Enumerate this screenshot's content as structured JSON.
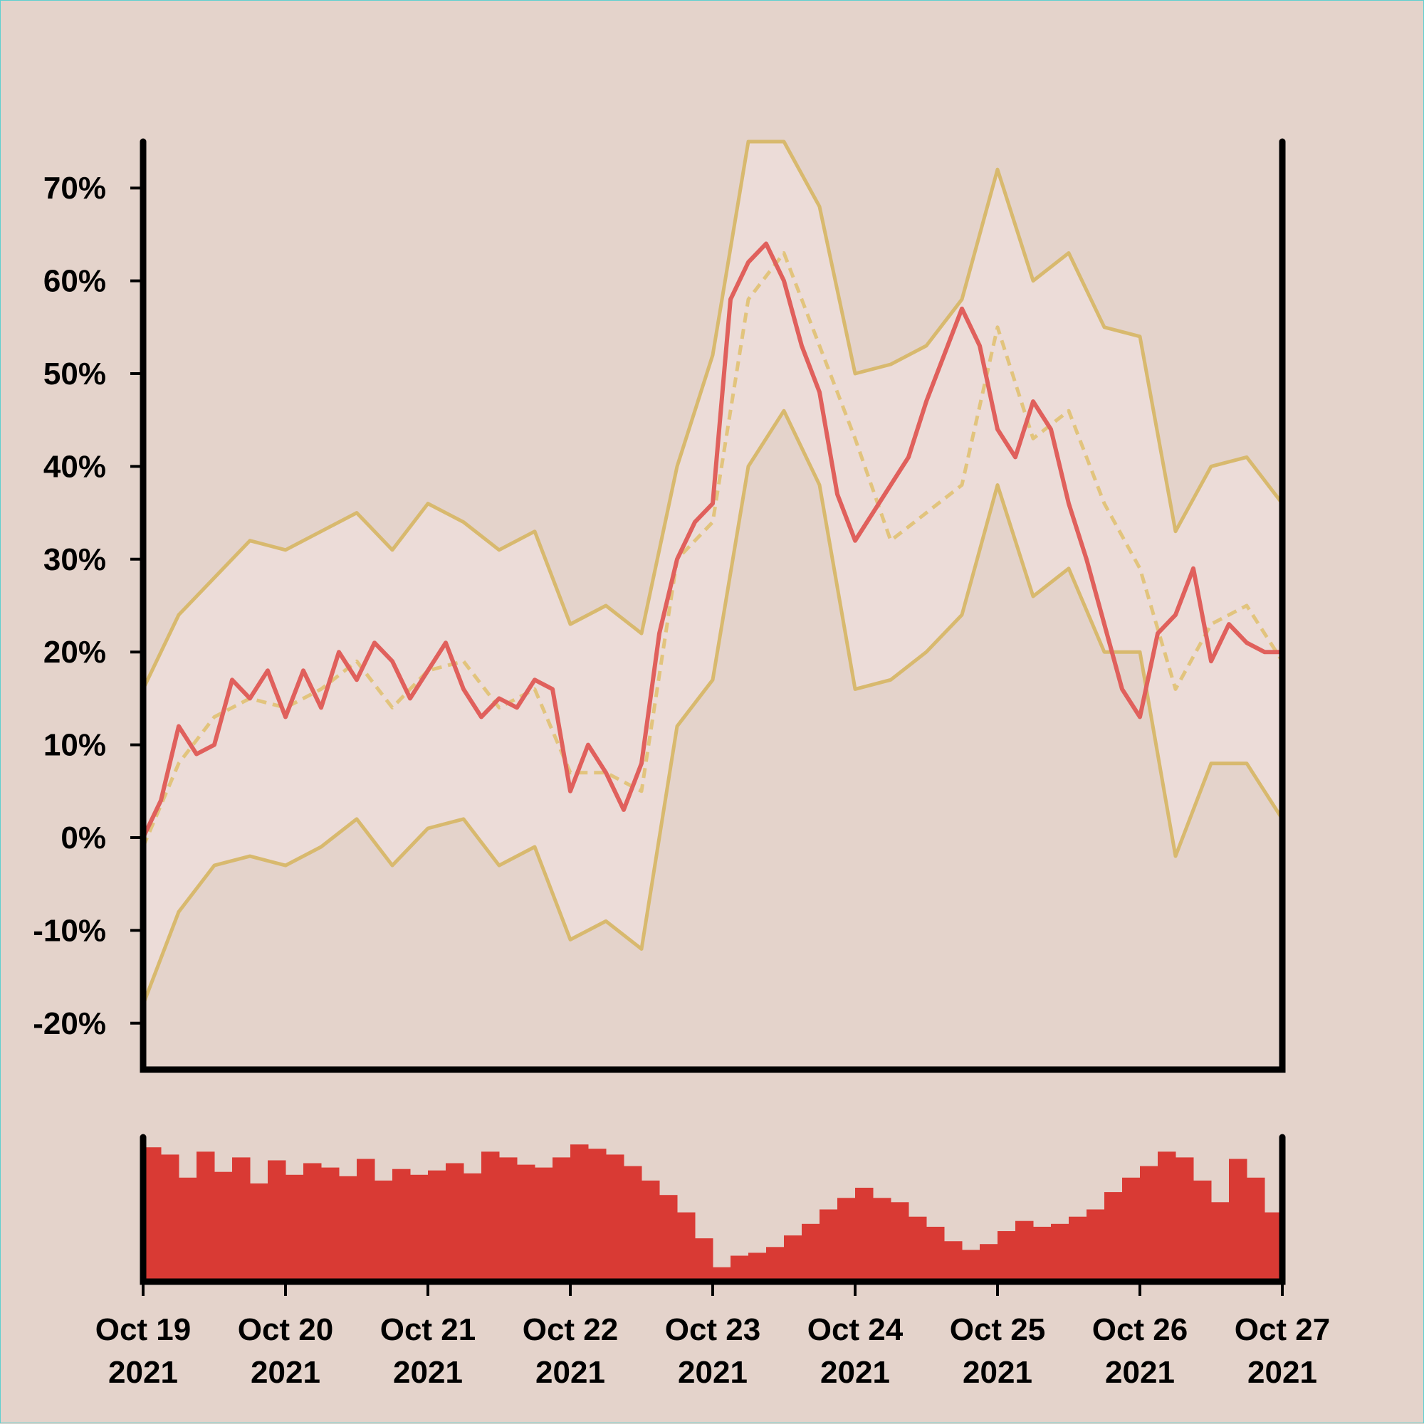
{
  "chart_data": {
    "type": "line",
    "title": "",
    "xlabel": "",
    "ylabel": "",
    "x_range": [
      "2021-10-19",
      "2021-10-27"
    ],
    "ylim": [
      -25,
      75
    ],
    "y_ticks": [
      "-20%",
      "-10%",
      "0%",
      "10%",
      "20%",
      "30%",
      "40%",
      "50%",
      "60%",
      "70%"
    ],
    "x_ticks": [
      {
        "line1": "Oct 19",
        "line2": "2021"
      },
      {
        "line1": "Oct 20",
        "line2": "2021"
      },
      {
        "line1": "Oct 21",
        "line2": "2021"
      },
      {
        "line1": "Oct 22",
        "line2": "2021"
      },
      {
        "line1": "Oct 23",
        "line2": "2021"
      },
      {
        "line1": "Oct 24",
        "line2": "2021"
      },
      {
        "line1": "Oct 25",
        "line2": "2021"
      },
      {
        "line1": "Oct 26",
        "line2": "2021"
      },
      {
        "line1": "Oct 27",
        "line2": "2021"
      }
    ],
    "grid": false,
    "legend": "none",
    "colors": {
      "background": "#e4d3cb",
      "price": "#e0605c",
      "bands": "#d8b96e",
      "band_fill": "#ecdcd8",
      "volume": "#d93a34",
      "axes": "#000000"
    },
    "series": [
      {
        "role": "price",
        "x": [
          "2021-10-19 00:00",
          "2021-10-19 03:00",
          "2021-10-19 06:00",
          "2021-10-19 09:00",
          "2021-10-19 12:00",
          "2021-10-19 15:00",
          "2021-10-19 18:00",
          "2021-10-19 21:00",
          "2021-10-20 00:00",
          "2021-10-20 03:00",
          "2021-10-20 06:00",
          "2021-10-20 09:00",
          "2021-10-20 12:00",
          "2021-10-20 15:00",
          "2021-10-20 18:00",
          "2021-10-20 21:00",
          "2021-10-21 00:00",
          "2021-10-21 03:00",
          "2021-10-21 06:00",
          "2021-10-21 09:00",
          "2021-10-21 12:00",
          "2021-10-21 15:00",
          "2021-10-21 18:00",
          "2021-10-21 21:00",
          "2021-10-22 00:00",
          "2021-10-22 03:00",
          "2021-10-22 06:00",
          "2021-10-22 09:00",
          "2021-10-22 12:00",
          "2021-10-22 15:00",
          "2021-10-22 18:00",
          "2021-10-22 21:00",
          "2021-10-23 00:00",
          "2021-10-23 03:00",
          "2021-10-23 06:00",
          "2021-10-23 09:00",
          "2021-10-23 12:00",
          "2021-10-23 15:00",
          "2021-10-23 18:00",
          "2021-10-23 21:00",
          "2021-10-24 00:00",
          "2021-10-24 03:00",
          "2021-10-24 06:00",
          "2021-10-24 09:00",
          "2021-10-24 12:00",
          "2021-10-24 15:00",
          "2021-10-24 18:00",
          "2021-10-24 21:00",
          "2021-10-25 00:00",
          "2021-10-25 03:00",
          "2021-10-25 06:00",
          "2021-10-25 09:00",
          "2021-10-25 12:00",
          "2021-10-25 15:00",
          "2021-10-25 18:00",
          "2021-10-25 21:00",
          "2021-10-26 00:00",
          "2021-10-26 03:00",
          "2021-10-26 06:00",
          "2021-10-26 09:00",
          "2021-10-26 12:00",
          "2021-10-26 15:00",
          "2021-10-26 18:00",
          "2021-10-26 21:00",
          "2021-10-27 00:00"
        ],
        "values": [
          0,
          4,
          12,
          9,
          10,
          17,
          15,
          18,
          13,
          18,
          14,
          20,
          17,
          21,
          19,
          15,
          18,
          21,
          16,
          13,
          15,
          14,
          17,
          16,
          5,
          10,
          7,
          3,
          8,
          22,
          30,
          34,
          36,
          58,
          62,
          64,
          60,
          53,
          48,
          37,
          32,
          35,
          38,
          41,
          47,
          52,
          57,
          53,
          44,
          41,
          47,
          44,
          36,
          30,
          23,
          16,
          13,
          22,
          24,
          29,
          19,
          23,
          21,
          20,
          20
        ]
      },
      {
        "role": "moving-average",
        "x": [
          "2021-10-19 00:00",
          "2021-10-19 06:00",
          "2021-10-19 12:00",
          "2021-10-19 18:00",
          "2021-10-20 00:00",
          "2021-10-20 06:00",
          "2021-10-20 12:00",
          "2021-10-20 18:00",
          "2021-10-21 00:00",
          "2021-10-21 06:00",
          "2021-10-21 12:00",
          "2021-10-21 18:00",
          "2021-10-22 00:00",
          "2021-10-22 06:00",
          "2021-10-22 12:00",
          "2021-10-22 18:00",
          "2021-10-23 00:00",
          "2021-10-23 06:00",
          "2021-10-23 12:00",
          "2021-10-23 18:00",
          "2021-10-24 00:00",
          "2021-10-24 06:00",
          "2021-10-24 12:00",
          "2021-10-24 18:00",
          "2021-10-25 00:00",
          "2021-10-25 06:00",
          "2021-10-25 12:00",
          "2021-10-25 18:00",
          "2021-10-26 00:00",
          "2021-10-26 06:00",
          "2021-10-26 12:00",
          "2021-10-26 18:00",
          "2021-10-27 00:00"
        ],
        "values": [
          -1,
          8,
          13,
          15,
          14,
          16,
          19,
          14,
          18,
          19,
          14,
          16,
          7,
          7,
          5,
          30,
          34,
          58,
          63,
          53,
          43,
          32,
          35,
          38,
          55,
          43,
          46,
          36,
          29,
          16,
          23,
          25,
          19
        ]
      },
      {
        "role": "upper-band",
        "x": [
          "2021-10-19 00:00",
          "2021-10-19 06:00",
          "2021-10-19 12:00",
          "2021-10-19 18:00",
          "2021-10-20 00:00",
          "2021-10-20 06:00",
          "2021-10-20 12:00",
          "2021-10-20 18:00",
          "2021-10-21 00:00",
          "2021-10-21 06:00",
          "2021-10-21 12:00",
          "2021-10-21 18:00",
          "2021-10-22 00:00",
          "2021-10-22 06:00",
          "2021-10-22 12:00",
          "2021-10-22 18:00",
          "2021-10-23 00:00",
          "2021-10-23 06:00",
          "2021-10-23 12:00",
          "2021-10-23 18:00",
          "2021-10-24 00:00",
          "2021-10-24 06:00",
          "2021-10-24 12:00",
          "2021-10-24 18:00",
          "2021-10-25 00:00",
          "2021-10-25 06:00",
          "2021-10-25 12:00",
          "2021-10-25 18:00",
          "2021-10-26 00:00",
          "2021-10-26 06:00",
          "2021-10-26 12:00",
          "2021-10-26 18:00",
          "2021-10-27 00:00"
        ],
        "values": [
          16,
          24,
          28,
          32,
          31,
          33,
          35,
          31,
          36,
          34,
          31,
          33,
          23,
          25,
          22,
          40,
          52,
          75,
          75,
          68,
          50,
          51,
          53,
          58,
          72,
          60,
          63,
          55,
          54,
          33,
          40,
          41,
          36
        ]
      },
      {
        "role": "lower-band",
        "x": [
          "2021-10-19 00:00",
          "2021-10-19 06:00",
          "2021-10-19 12:00",
          "2021-10-19 18:00",
          "2021-10-20 00:00",
          "2021-10-20 06:00",
          "2021-10-20 12:00",
          "2021-10-20 18:00",
          "2021-10-21 00:00",
          "2021-10-21 06:00",
          "2021-10-21 12:00",
          "2021-10-21 18:00",
          "2021-10-22 00:00",
          "2021-10-22 06:00",
          "2021-10-22 12:00",
          "2021-10-22 18:00",
          "2021-10-23 00:00",
          "2021-10-23 06:00",
          "2021-10-23 12:00",
          "2021-10-23 18:00",
          "2021-10-24 00:00",
          "2021-10-24 06:00",
          "2021-10-24 12:00",
          "2021-10-24 18:00",
          "2021-10-25 00:00",
          "2021-10-25 06:00",
          "2021-10-25 12:00",
          "2021-10-25 18:00",
          "2021-10-26 00:00",
          "2021-10-26 06:00",
          "2021-10-26 12:00",
          "2021-10-26 18:00",
          "2021-10-27 00:00"
        ],
        "values": [
          -18,
          -8,
          -3,
          -2,
          -3,
          -1,
          2,
          -3,
          1,
          2,
          -3,
          -1,
          -11,
          -9,
          -12,
          12,
          17,
          40,
          46,
          38,
          16,
          17,
          20,
          24,
          38,
          26,
          29,
          20,
          20,
          -2,
          8,
          8,
          2
        ]
      },
      {
        "role": "volume",
        "x_range": [
          "2021-10-19",
          "2021-10-27"
        ],
        "values_relative": [
          0.93,
          0.88,
          0.72,
          0.9,
          0.76,
          0.86,
          0.68,
          0.84,
          0.74,
          0.82,
          0.79,
          0.73,
          0.85,
          0.7,
          0.78,
          0.74,
          0.77,
          0.82,
          0.75,
          0.9,
          0.86,
          0.81,
          0.79,
          0.86,
          0.95,
          0.92,
          0.88,
          0.8,
          0.7,
          0.6,
          0.48,
          0.3,
          0.1,
          0.18,
          0.2,
          0.24,
          0.32,
          0.4,
          0.5,
          0.58,
          0.65,
          0.58,
          0.55,
          0.45,
          0.38,
          0.28,
          0.22,
          0.26,
          0.35,
          0.42,
          0.38,
          0.4,
          0.45,
          0.5,
          0.62,
          0.72,
          0.8,
          0.9,
          0.86,
          0.7,
          0.55,
          0.85,
          0.72,
          0.48
        ]
      }
    ]
  }
}
